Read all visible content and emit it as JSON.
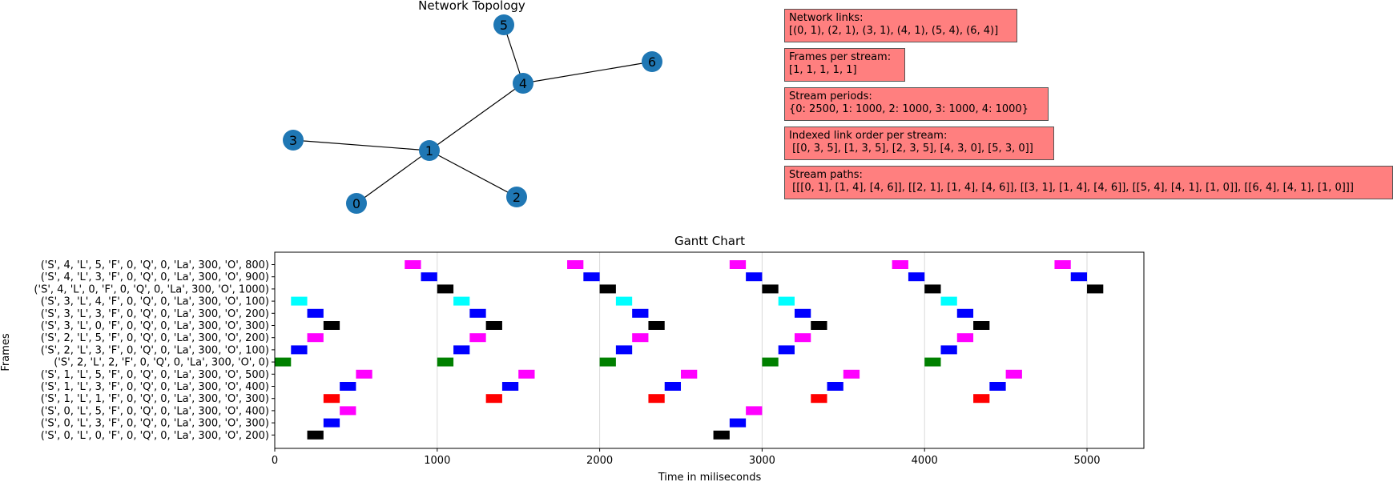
{
  "network": {
    "title": "Network  Topology",
    "nodes": [
      {
        "id": "0"
      },
      {
        "id": "1"
      },
      {
        "id": "2"
      },
      {
        "id": "3"
      },
      {
        "id": "4"
      },
      {
        "id": "5"
      },
      {
        "id": "6"
      }
    ],
    "edges": [
      [
        0,
        1
      ],
      [
        2,
        1
      ],
      [
        3,
        1
      ],
      [
        4,
        1
      ],
      [
        5,
        4
      ],
      [
        6,
        4
      ]
    ],
    "node_color": "#1f77b4"
  },
  "info_boxes": [
    {
      "label": "Network links:",
      "value": "[(0, 1), (2, 1), (3, 1), (4, 1), (5, 4), (6, 4)]"
    },
    {
      "label": "Frames per stream:",
      "value": "[1, 1, 1, 1, 1]"
    },
    {
      "label": "Stream periods:",
      "value": "{0: 2500, 1: 1000, 2: 1000, 3: 1000, 4: 1000}"
    },
    {
      "label": "Indexed link order per stream:",
      "value": " [[0, 3, 5], [1, 3, 5], [2, 3, 5], [4, 3, 0], [5, 3, 0]]"
    },
    {
      "label": "Stream paths:",
      "value": " [[[0, 1], [1, 4], [4, 6]], [[2, 1], [1, 4], [4, 6]], [[3, 1], [1, 4], [4, 6]], [[5, 4], [4, 1], [1, 0]], [[6, 4], [4, 1], [1, 0]]]"
    }
  ],
  "chart_data": {
    "type": "gantt",
    "title": "Gantt Chart",
    "xlabel": "Time in miliseconds",
    "ylabel": "Frames",
    "xlim": [
      0,
      5350
    ],
    "xticks": [
      0,
      1000,
      2000,
      3000,
      4000,
      5000
    ],
    "grid": "vertical",
    "bar_duration": 100,
    "colors": {
      "magenta": "#ff00ff",
      "blue": "#0000ff",
      "black": "#000000",
      "cyan": "#00ffff",
      "green": "#008000",
      "red": "#ff0000"
    },
    "rows": [
      {
        "label": "('S', 4, 'L', 5, 'F', 0, 'Q', 0, 'La', 300, 'O', 800)",
        "color": "#ff00ff",
        "starts": [
          800,
          1800,
          2800,
          3800,
          4800
        ]
      },
      {
        "label": "('S', 4, 'L', 3, 'F', 0, 'Q', 0, 'La', 300, 'O', 900)",
        "color": "#0000ff",
        "starts": [
          900,
          1900,
          2900,
          3900,
          4900
        ]
      },
      {
        "label": "('S', 4, 'L', 0, 'F', 0, 'Q', 0, 'La', 300, 'O', 1000)",
        "color": "#000000",
        "starts": [
          1000,
          2000,
          3000,
          4000,
          5000
        ]
      },
      {
        "label": "('S', 3, 'L', 4, 'F', 0, 'Q', 0, 'La', 300, 'O', 100)",
        "color": "#00ffff",
        "starts": [
          100,
          1100,
          2100,
          3100,
          4100
        ]
      },
      {
        "label": "('S', 3, 'L', 3, 'F', 0, 'Q', 0, 'La', 300, 'O', 200)",
        "color": "#0000ff",
        "starts": [
          200,
          1200,
          2200,
          3200,
          4200
        ]
      },
      {
        "label": "('S', 3, 'L', 0, 'F', 0, 'Q', 0, 'La', 300, 'O', 300)",
        "color": "#000000",
        "starts": [
          300,
          1300,
          2300,
          3300,
          4300
        ]
      },
      {
        "label": "('S', 2, 'L', 5, 'F', 0, 'Q', 0, 'La', 300, 'O', 200)",
        "color": "#ff00ff",
        "starts": [
          200,
          1200,
          2200,
          3200,
          4200
        ]
      },
      {
        "label": "('S', 2, 'L', 3, 'F', 0, 'Q', 0, 'La', 300, 'O', 100)",
        "color": "#0000ff",
        "starts": [
          100,
          1100,
          2100,
          3100,
          4100
        ]
      },
      {
        "label": "('S', 2, 'L', 2, 'F', 0, 'Q', 0, 'La', 300, 'O', 0)",
        "color": "#008000",
        "starts": [
          0,
          1000,
          2000,
          3000,
          4000
        ]
      },
      {
        "label": "('S', 1, 'L', 5, 'F', 0, 'Q', 0, 'La', 300, 'O', 500)",
        "color": "#ff00ff",
        "starts": [
          500,
          1500,
          2500,
          3500,
          4500
        ]
      },
      {
        "label": "('S', 1, 'L', 3, 'F', 0, 'Q', 0, 'La', 300, 'O', 400)",
        "color": "#0000ff",
        "starts": [
          400,
          1400,
          2400,
          3400,
          4400
        ]
      },
      {
        "label": "('S', 1, 'L', 1, 'F', 0, 'Q', 0, 'La', 300, 'O', 300)",
        "color": "#ff0000",
        "starts": [
          300,
          1300,
          2300,
          3300,
          4300
        ]
      },
      {
        "label": "('S', 0, 'L', 5, 'F', 0, 'Q', 0, 'La', 300, 'O', 400)",
        "color": "#ff00ff",
        "starts": [
          400,
          2900
        ]
      },
      {
        "label": "('S', 0, 'L', 3, 'F', 0, 'Q', 0, 'La', 300, 'O', 300)",
        "color": "#0000ff",
        "starts": [
          300,
          2800
        ]
      },
      {
        "label": "('S', 0, 'L', 0, 'F', 0, 'Q', 0, 'La', 300, 'O', 200)",
        "color": "#000000",
        "starts": [
          200,
          2700
        ]
      }
    ]
  }
}
